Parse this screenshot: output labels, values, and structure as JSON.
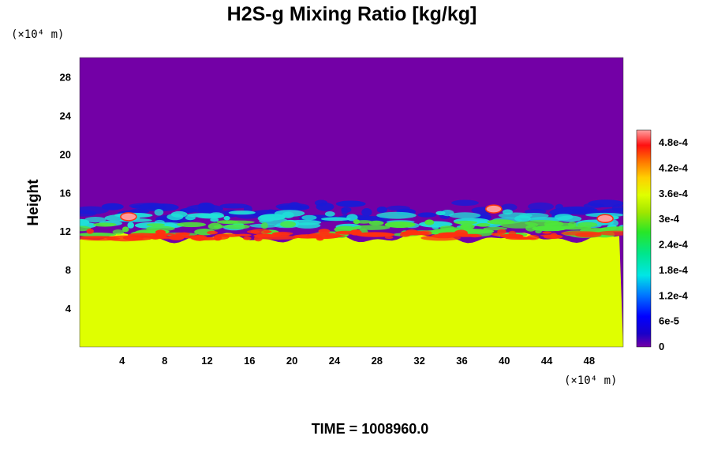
{
  "chart_data": {
    "type": "heatmap",
    "title": "H2S-g Mixing Ratio [kg/kg]",
    "ylabel": "Height",
    "x_unit": "(×10⁴ m)",
    "y_unit": "(×10⁴ m)",
    "xlim": [
      0,
      51.2
    ],
    "ylim": [
      0,
      30
    ],
    "x_ticks": [
      4,
      8,
      12,
      16,
      20,
      24,
      28,
      32,
      36,
      40,
      44,
      48
    ],
    "y_ticks": [
      4,
      8,
      12,
      16,
      20,
      24,
      28
    ],
    "x_tick_labels": [
      "4",
      "8",
      "12",
      "16",
      "20",
      "24",
      "28",
      "32",
      "36",
      "40",
      "44",
      "48"
    ],
    "y_tick_labels": [
      "4",
      "8",
      "12",
      "16",
      "20",
      "24",
      "28"
    ],
    "colorbar": {
      "min": 0,
      "max": 0.00051,
      "ticks": [
        0,
        6e-05,
        0.00012,
        0.00018,
        0.00024,
        0.0003,
        0.00036,
        0.00042,
        0.00048
      ],
      "tick_labels": [
        "0",
        "6e-5",
        "1.2e-4",
        "1.8e-4",
        "2.4e-4",
        "3e-4",
        "3.6e-4",
        "4.2e-4",
        "4.8e-4"
      ]
    },
    "field_description": {
      "upper_region_value": 0,
      "lower_region_value": 0.00036,
      "interface_height_range": [
        11,
        15
      ]
    },
    "time_label": "TIME = 1008960.0"
  },
  "colors": {
    "upper": "#7300a6",
    "lower": "#dfff00",
    "interface_blue": "#1a1ad6",
    "interface_cyan": "#20e0d8",
    "interface_green": "#4ee63a",
    "interface_red": "#ff3010",
    "interface_pink": "#ff9a9a"
  }
}
